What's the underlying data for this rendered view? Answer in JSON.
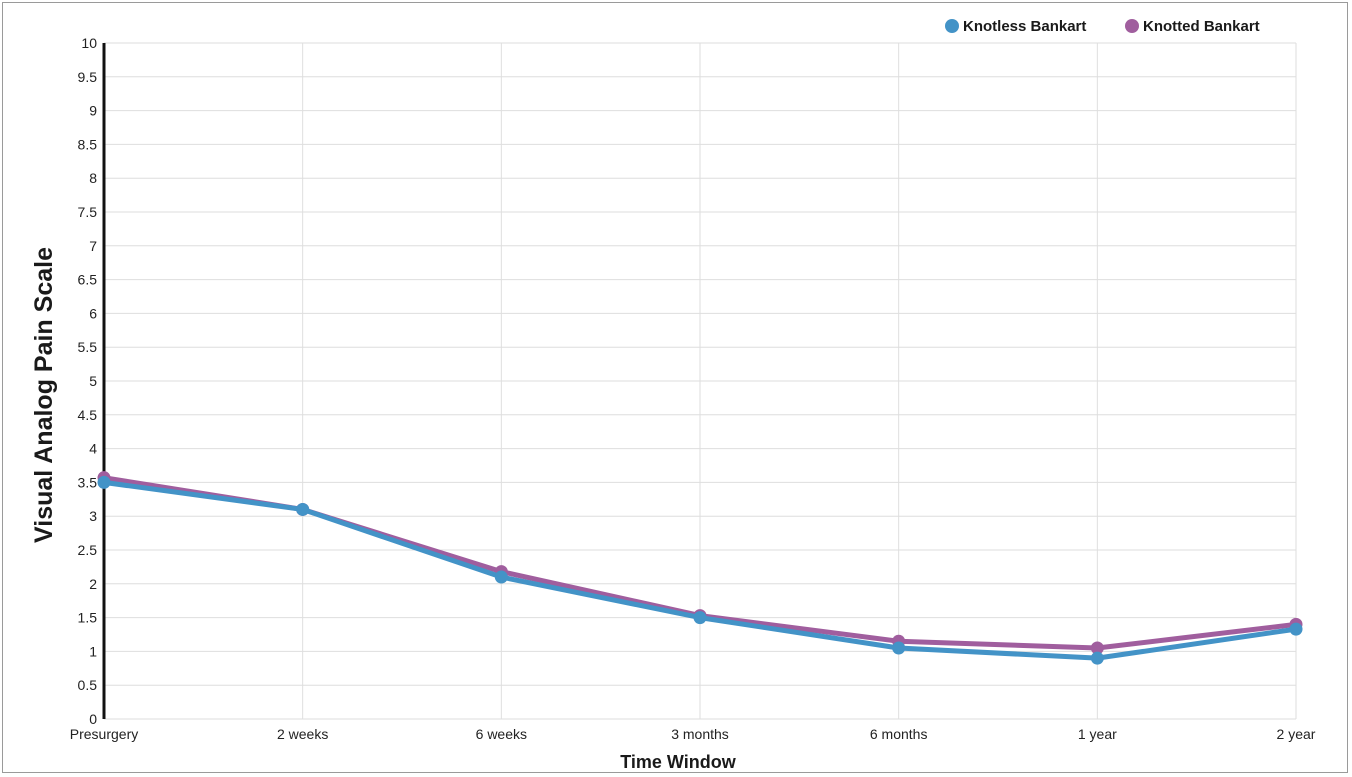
{
  "chart_data": {
    "type": "line",
    "categories": [
      "Presurgery",
      "2 weeks",
      "6 weeks",
      "3 months",
      "6 months",
      "1 year",
      "2 year"
    ],
    "series": [
      {
        "name": "Knotless Bankart",
        "color": "#4393c7",
        "values": [
          3.5,
          3.1,
          2.1,
          1.5,
          1.05,
          0.9,
          1.33
        ]
      },
      {
        "name": "Knotted Bankart",
        "color": "#a05e9e",
        "values": [
          3.57,
          3.1,
          2.18,
          1.53,
          1.15,
          1.05,
          1.4
        ]
      }
    ],
    "xlabel": "Time Window",
    "ylabel": "Visual Analog Pain Scale",
    "ylim": [
      0,
      10
    ],
    "yticks": [
      "0",
      "0.5",
      "1",
      "1.5",
      "2",
      "2.5",
      "3",
      "3.5",
      "4",
      "4.5",
      "5",
      "5.5",
      "6",
      "6.5",
      "7",
      "7.5",
      "8",
      "8.5",
      "9",
      "9.5",
      "10"
    ],
    "grid": true,
    "legend_position": "top-right"
  }
}
